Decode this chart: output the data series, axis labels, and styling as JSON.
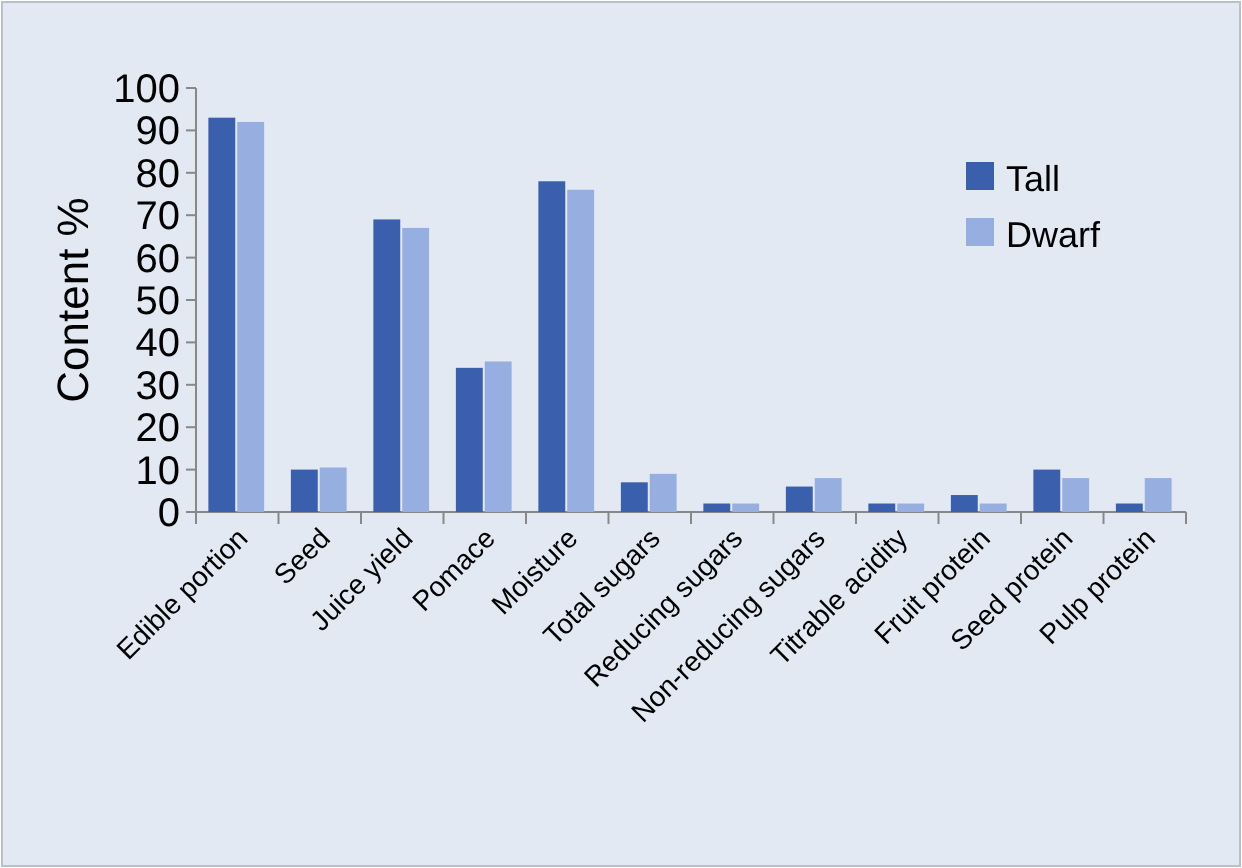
{
  "chart_data": {
    "type": "bar",
    "ylabel": "Content %",
    "categories": [
      "Edible portion",
      "Seed",
      "Juice yield",
      "Pomace",
      "Moisture",
      "Total sugars",
      "Reducing sugars",
      "Non-reducing sugars",
      "Titrable acidity",
      "Fruit protein",
      "Seed protein",
      "Pulp protein"
    ],
    "series": [
      {
        "name": "Tall",
        "color": "#3a5fad",
        "values": [
          93,
          10,
          69,
          34,
          78,
          7,
          2,
          6,
          2,
          4,
          10,
          2
        ]
      },
      {
        "name": "Dwarf",
        "color": "#97aee0",
        "values": [
          92,
          10.5,
          67,
          35.5,
          76,
          9,
          2,
          8,
          2,
          2,
          8,
          8
        ]
      }
    ],
    "ylim": [
      0,
      100
    ],
    "yticks": [
      0,
      10,
      20,
      30,
      40,
      50,
      60,
      70,
      80,
      90,
      100
    ],
    "grid": false,
    "legend": "top right"
  }
}
